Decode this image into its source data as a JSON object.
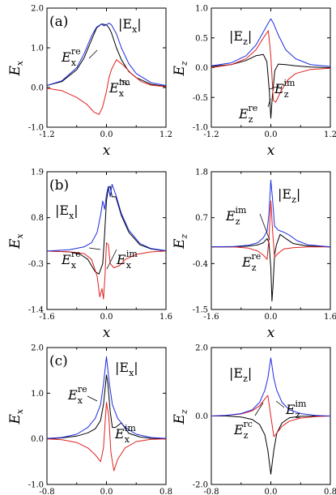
{
  "colors": {
    "re": "#000000",
    "im": "#e02020",
    "abs": "#1c2ce0",
    "frame": "#000000"
  },
  "chart_data": [
    {
      "type": "line",
      "panel_label": "(a)",
      "xlabel": "x",
      "ylabel": "E",
      "ylabel_sub": "x",
      "xlim": [
        -1.2,
        1.2
      ],
      "ylim": [
        -1.0,
        2.0
      ],
      "xticks": [
        "-1.2",
        "0.0",
        "1.2"
      ],
      "yticks": [
        "-1.0",
        "0.0",
        "1.0",
        "2.0"
      ],
      "ytick_values": [
        -1.0,
        0.0,
        1.0,
        2.0
      ],
      "annotations": [
        "|E",
        "x",
        "|",
        "E",
        "x",
        "re",
        "E",
        "x",
        "im"
      ],
      "series": [
        {
          "key": "re",
          "x": [
            -1.2,
            -0.9,
            -0.6,
            -0.45,
            -0.3,
            -0.2,
            -0.1,
            0.0,
            0.05,
            0.1,
            0.2,
            0.3,
            0.45,
            0.6,
            0.9,
            1.2
          ],
          "y": [
            0.05,
            0.15,
            0.45,
            0.75,
            1.2,
            1.5,
            1.6,
            1.58,
            1.5,
            1.38,
            1.0,
            0.7,
            0.4,
            0.25,
            0.08,
            0.03
          ]
        },
        {
          "key": "im",
          "x": [
            -1.2,
            -0.9,
            -0.6,
            -0.4,
            -0.25,
            -0.15,
            -0.08,
            0.0,
            0.05,
            0.1,
            0.2,
            0.35,
            0.5,
            0.7,
            0.9,
            1.2
          ],
          "y": [
            -0.02,
            -0.08,
            -0.25,
            -0.42,
            -0.62,
            -0.68,
            -0.5,
            -0.1,
            0.25,
            0.45,
            0.7,
            0.55,
            0.35,
            0.15,
            0.06,
            0.02
          ]
        },
        {
          "key": "abs",
          "x": [
            -1.2,
            -0.9,
            -0.6,
            -0.45,
            -0.3,
            -0.2,
            -0.1,
            -0.05,
            0.0,
            0.05,
            0.1,
            0.2,
            0.3,
            0.45,
            0.6,
            0.9,
            1.2
          ],
          "y": [
            0.05,
            0.17,
            0.5,
            0.85,
            1.3,
            1.52,
            1.6,
            1.55,
            1.58,
            1.62,
            1.58,
            1.35,
            1.0,
            0.6,
            0.35,
            0.12,
            0.05
          ]
        }
      ]
    },
    {
      "type": "line",
      "panel_label": "",
      "xlabel": "x",
      "ylabel": "E",
      "ylabel_sub": "z",
      "xlim": [
        -1.2,
        1.2
      ],
      "ylim": [
        -1.0,
        1.0
      ],
      "xticks": [
        "-1.2",
        "0.0",
        "1.2"
      ],
      "yticks": [
        "-1.0",
        "-0.5",
        "0.0",
        "0.5",
        "1.0"
      ],
      "ytick_values": [
        -1.0,
        -0.5,
        0.0,
        0.5,
        1.0
      ],
      "annotations": [
        "|E",
        "z",
        "|",
        "E",
        "z",
        "re",
        "E",
        "z",
        "im"
      ],
      "series": [
        {
          "key": "re",
          "x": [
            -1.2,
            -0.8,
            -0.5,
            -0.3,
            -0.15,
            -0.08,
            -0.03,
            0.0,
            0.03,
            0.08,
            0.15,
            0.3,
            0.5,
            0.8,
            1.2
          ],
          "y": [
            0.02,
            0.05,
            0.12,
            0.2,
            0.22,
            0.1,
            -0.4,
            -0.85,
            -0.5,
            -0.05,
            0.06,
            0.05,
            0.03,
            0.01,
            0.0
          ]
        },
        {
          "key": "im",
          "x": [
            -1.2,
            -0.8,
            -0.5,
            -0.3,
            -0.15,
            -0.05,
            0.0,
            0.05,
            0.1,
            0.2,
            0.35,
            0.5,
            0.8,
            1.2
          ],
          "y": [
            0.0,
            0.05,
            0.15,
            0.3,
            0.5,
            0.62,
            0.2,
            -0.55,
            -0.58,
            -0.4,
            -0.2,
            -0.1,
            -0.03,
            -0.01
          ]
        },
        {
          "key": "abs",
          "x": [
            -1.2,
            -0.8,
            -0.5,
            -0.3,
            -0.15,
            -0.05,
            0.0,
            0.05,
            0.15,
            0.3,
            0.5,
            0.8,
            1.2
          ],
          "y": [
            0.03,
            0.08,
            0.2,
            0.38,
            0.6,
            0.75,
            0.82,
            0.75,
            0.55,
            0.3,
            0.15,
            0.05,
            0.02
          ]
        }
      ]
    },
    {
      "type": "line",
      "panel_label": "(b)",
      "xlabel": "x",
      "ylabel": "E",
      "ylabel_sub": "x",
      "xlim": [
        -1.6,
        1.6
      ],
      "ylim": [
        -1.4,
        1.9
      ],
      "xticks": [
        "-1.6",
        "0.0",
        "1.6"
      ],
      "yticks": [
        "-1.4",
        "-0.3",
        "0.8",
        "1.9"
      ],
      "ytick_values": [
        -1.4,
        -0.3,
        0.8,
        1.9
      ],
      "annotations": [
        "|E",
        "x",
        "|",
        "E",
        "x",
        "re",
        "E",
        "x",
        "im"
      ],
      "series": [
        {
          "key": "re",
          "x": [
            -1.6,
            -1.0,
            -0.7,
            -0.5,
            -0.3,
            -0.2,
            -0.1,
            -0.05,
            0.0,
            0.05,
            0.1,
            0.15,
            0.25,
            0.4,
            0.6,
            0.9,
            1.2,
            1.6
          ],
          "y": [
            0.0,
            -0.02,
            -0.08,
            -0.2,
            -0.5,
            -0.55,
            -0.3,
            0.4,
            1.2,
            1.5,
            1.55,
            1.3,
            1.3,
            0.85,
            0.45,
            0.15,
            0.05,
            0.0
          ]
        },
        {
          "key": "im",
          "x": [
            -1.6,
            -1.0,
            -0.6,
            -0.4,
            -0.25,
            -0.18,
            -0.12,
            -0.08,
            -0.04,
            0.0,
            0.05,
            0.1,
            0.2,
            0.35,
            0.5,
            0.8,
            1.2,
            1.6
          ],
          "y": [
            0.0,
            -0.02,
            -0.06,
            -0.2,
            -0.6,
            -1.1,
            -0.9,
            -1.15,
            -0.6,
            0.2,
            0.15,
            -0.3,
            -0.4,
            -0.35,
            -0.2,
            -0.08,
            -0.02,
            0.0
          ]
        },
        {
          "key": "abs",
          "x": [
            -1.6,
            -1.0,
            -0.6,
            -0.4,
            -0.25,
            -0.15,
            -0.1,
            -0.05,
            0.0,
            0.05,
            0.1,
            0.15,
            0.25,
            0.4,
            0.6,
            0.9,
            1.2,
            1.6
          ],
          "y": [
            0.0,
            0.03,
            0.1,
            0.2,
            0.45,
            0.9,
            1.2,
            1.0,
            1.35,
            1.55,
            1.3,
            1.6,
            1.35,
            0.9,
            0.5,
            0.18,
            0.06,
            0.01
          ]
        }
      ]
    },
    {
      "type": "line",
      "panel_label": "",
      "xlabel": "x",
      "ylabel": "E",
      "ylabel_sub": "z",
      "xlim": [
        -1.6,
        1.6
      ],
      "ylim": [
        -1.5,
        1.8
      ],
      "xticks": [
        "-1.6",
        "0.0",
        "1.6"
      ],
      "yticks": [
        "-1.5",
        "-0.4",
        "0.7",
        "1.8"
      ],
      "ytick_values": [
        -1.5,
        -0.4,
        0.7,
        1.8
      ],
      "annotations": [
        "|E",
        "z",
        "|",
        "E",
        "z",
        "re",
        "E",
        "z",
        "im"
      ],
      "series": [
        {
          "key": "re",
          "x": [
            -1.6,
            -1.0,
            -0.6,
            -0.35,
            -0.2,
            -0.1,
            -0.05,
            0.0,
            0.03,
            0.06,
            0.1,
            0.15,
            0.25,
            0.4,
            0.6,
            1.0,
            1.6
          ],
          "y": [
            0.0,
            0.0,
            0.02,
            0.05,
            0.1,
            0.2,
            0.1,
            -0.5,
            -1.3,
            -0.9,
            -0.2,
            0.05,
            0.3,
            0.2,
            0.08,
            0.02,
            0.0
          ]
        },
        {
          "key": "im",
          "x": [
            -1.6,
            -1.0,
            -0.6,
            -0.35,
            -0.2,
            -0.1,
            -0.05,
            0.0,
            0.05,
            0.1,
            0.2,
            0.35,
            0.6,
            1.0,
            1.6
          ],
          "y": [
            0.0,
            0.0,
            -0.03,
            -0.1,
            -0.2,
            -0.3,
            0.2,
            1.1,
            0.35,
            -0.25,
            -0.15,
            -0.05,
            -0.02,
            0.0,
            0.0
          ]
        },
        {
          "key": "abs",
          "x": [
            -1.6,
            -1.0,
            -0.6,
            -0.35,
            -0.2,
            -0.1,
            -0.05,
            0.0,
            0.05,
            0.1,
            0.2,
            0.35,
            0.5,
            0.7,
            1.0,
            1.6
          ],
          "y": [
            0.0,
            0.01,
            0.04,
            0.1,
            0.22,
            0.38,
            0.8,
            1.6,
            1.1,
            0.5,
            0.4,
            0.35,
            0.28,
            0.15,
            0.05,
            0.0
          ]
        }
      ]
    },
    {
      "type": "line",
      "panel_label": "(c)",
      "xlabel": "x",
      "ylabel": "E",
      "ylabel_sub": "x",
      "xlim": [
        -0.8,
        0.8
      ],
      "ylim": [
        -1.0,
        2.0
      ],
      "xticks": [
        "-0.8",
        "0.0",
        "0.8"
      ],
      "yticks": [
        "-1.0",
        "0.0",
        "1.0",
        "2.0"
      ],
      "ytick_values": [
        -1.0,
        0.0,
        1.0,
        2.0
      ],
      "annotations": [
        "|E",
        "x",
        "|",
        "E",
        "x",
        "re",
        "E",
        "x",
        "im"
      ],
      "series": [
        {
          "key": "re",
          "x": [
            -0.8,
            -0.6,
            -0.4,
            -0.25,
            -0.15,
            -0.08,
            -0.04,
            0.0,
            0.02,
            0.05,
            0.08,
            0.12,
            0.2,
            0.3,
            0.45,
            0.6,
            0.8
          ],
          "y": [
            0.0,
            0.02,
            0.06,
            0.13,
            0.22,
            0.4,
            0.75,
            1.4,
            1.2,
            0.6,
            0.25,
            0.25,
            0.35,
            0.12,
            0.04,
            0.01,
            0.0
          ]
        },
        {
          "key": "im",
          "x": [
            -0.8,
            -0.6,
            -0.4,
            -0.25,
            -0.15,
            -0.08,
            -0.04,
            0.0,
            0.03,
            0.06,
            0.1,
            0.15,
            0.25,
            0.4,
            0.6,
            0.8
          ],
          "y": [
            0.0,
            -0.02,
            -0.08,
            -0.2,
            -0.35,
            -0.5,
            -0.2,
            0.8,
            0.5,
            -0.3,
            -0.7,
            -0.45,
            -0.2,
            -0.06,
            -0.01,
            0.0
          ]
        },
        {
          "key": "abs",
          "x": [
            -0.8,
            -0.6,
            -0.4,
            -0.25,
            -0.15,
            -0.08,
            -0.04,
            0.0,
            0.04,
            0.08,
            0.15,
            0.25,
            0.4,
            0.6,
            0.8
          ],
          "y": [
            0.01,
            0.03,
            0.1,
            0.25,
            0.45,
            0.75,
            1.2,
            1.8,
            1.2,
            0.75,
            0.45,
            0.25,
            0.1,
            0.03,
            0.01
          ]
        }
      ]
    },
    {
      "type": "line",
      "panel_label": "",
      "xlabel": "x",
      "ylabel": "E",
      "ylabel_sub": "z",
      "xlim": [
        -0.8,
        0.8
      ],
      "ylim": [
        -2.0,
        2.0
      ],
      "xticks": [
        "-0.8",
        "0.0",
        "0.8"
      ],
      "yticks": [
        "-2.0",
        "0.0",
        "2.0"
      ],
      "ytick_values": [
        -2.0,
        0.0,
        2.0
      ],
      "annotations": [
        "|E",
        "z",
        "|",
        "E",
        "z",
        "rc",
        "E",
        "z",
        "im"
      ],
      "series": [
        {
          "key": "re",
          "x": [
            -0.8,
            -0.6,
            -0.4,
            -0.25,
            -0.15,
            -0.08,
            -0.04,
            0.0,
            0.04,
            0.08,
            0.15,
            0.25,
            0.4,
            0.6,
            0.8
          ],
          "y": [
            0.0,
            0.0,
            -0.03,
            -0.1,
            -0.25,
            -0.55,
            -1.0,
            -1.7,
            -1.0,
            -0.5,
            -0.2,
            -0.05,
            -0.01,
            0.0,
            0.0
          ]
        },
        {
          "key": "im",
          "x": [
            -0.8,
            -0.6,
            -0.4,
            -0.25,
            -0.15,
            -0.08,
            -0.04,
            0.0,
            0.04,
            0.08,
            0.15,
            0.25,
            0.4,
            0.6,
            0.8
          ],
          "y": [
            0.0,
            0.02,
            0.06,
            0.15,
            0.3,
            0.5,
            0.6,
            0.0,
            -0.6,
            -0.5,
            -0.3,
            -0.15,
            -0.06,
            -0.02,
            0.0
          ]
        },
        {
          "key": "abs",
          "x": [
            -0.8,
            -0.6,
            -0.4,
            -0.25,
            -0.15,
            -0.08,
            -0.04,
            0.0,
            0.04,
            0.08,
            0.15,
            0.25,
            0.4,
            0.6,
            0.8
          ],
          "y": [
            0.0,
            0.02,
            0.07,
            0.18,
            0.4,
            0.75,
            1.1,
            1.7,
            1.1,
            0.75,
            0.4,
            0.18,
            0.07,
            0.02,
            0.0
          ]
        }
      ]
    }
  ]
}
